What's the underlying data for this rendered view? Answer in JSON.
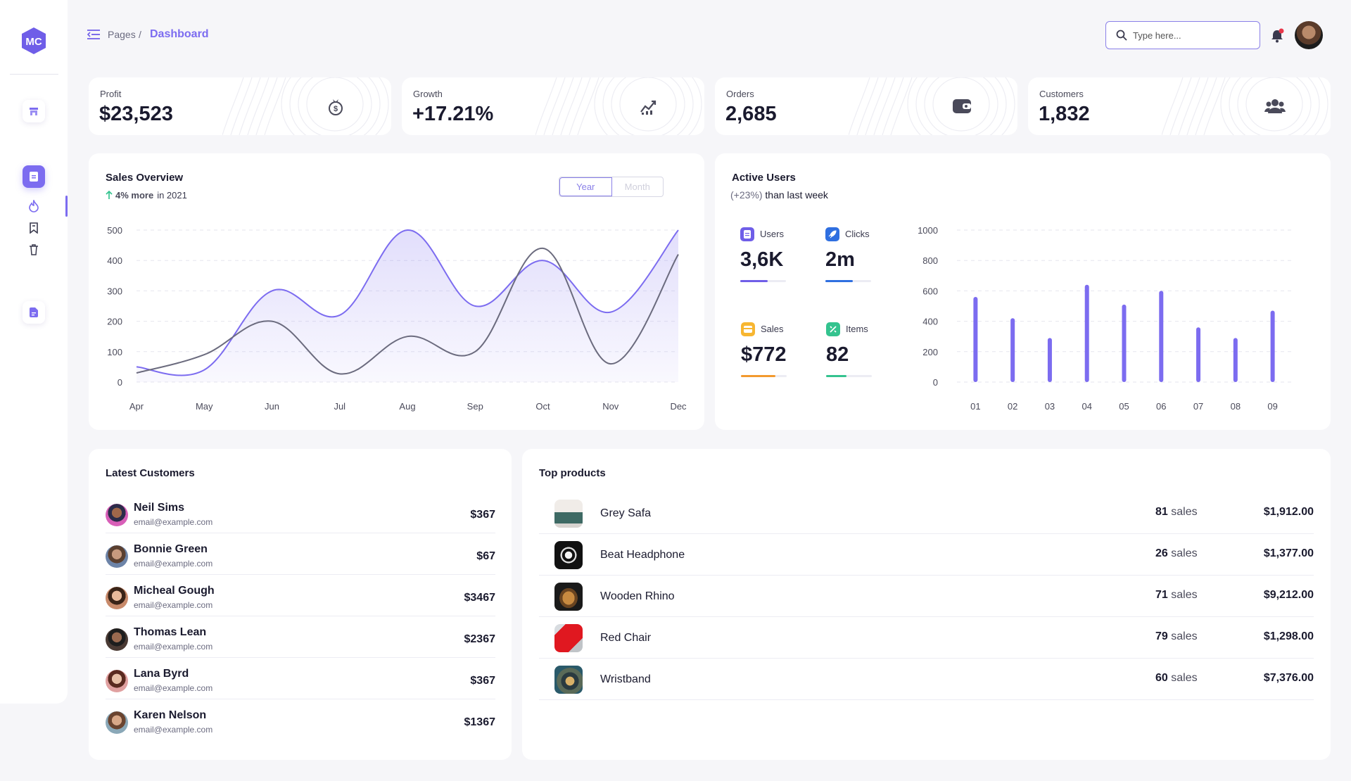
{
  "header": {
    "breadcrumb_parent": "Pages",
    "breadcrumb_sep": "/",
    "breadcrumb_current": "Dashboard",
    "search_placeholder": "Type here..."
  },
  "stats": [
    {
      "label": "Profit",
      "value": "$23,523",
      "icon": "money-bag-icon"
    },
    {
      "label": "Growth",
      "value": "+17.21%",
      "icon": "trend-chart-icon"
    },
    {
      "label": "Orders",
      "value": "2,685",
      "icon": "wallet-icon"
    },
    {
      "label": "Customers",
      "value": "1,832",
      "icon": "users-icon"
    }
  ],
  "sales_overview": {
    "title": "Sales Overview",
    "delta": "4% more",
    "delta_suffix": "in 2021",
    "toggle": [
      "Year",
      "Month"
    ],
    "toggle_selected": "Year"
  },
  "active_users": {
    "title": "Active Users",
    "delta": "(+23%)",
    "delta_suffix": "than last week",
    "metrics": [
      {
        "label": "Users",
        "value": "3,6K",
        "color": "#6f5ee8",
        "progress": 0.6
      },
      {
        "label": "Clicks",
        "value": "2m",
        "color": "#2f6fe0",
        "progress": 0.6
      },
      {
        "label": "Sales",
        "value": "$772",
        "color": "#f29a2e",
        "progress": 0.75
      },
      {
        "label": "Items",
        "value": "82",
        "color": "#34c38f",
        "progress": 0.45
      }
    ]
  },
  "latest_customers": {
    "title": "Latest Customers",
    "rows": [
      {
        "name": "Neil Sims",
        "email": "email@example.com",
        "amount": "$367"
      },
      {
        "name": "Bonnie Green",
        "email": "email@example.com",
        "amount": "$67"
      },
      {
        "name": "Micheal Gough",
        "email": "email@example.com",
        "amount": "$3467"
      },
      {
        "name": "Thomas Lean",
        "email": "email@example.com",
        "amount": "$2367"
      },
      {
        "name": "Lana Byrd",
        "email": "email@example.com",
        "amount": "$367"
      },
      {
        "name": "Karen Nelson",
        "email": "email@example.com",
        "amount": "$1367"
      }
    ]
  },
  "top_products": {
    "title": "Top products",
    "sales_word": "sales",
    "rows": [
      {
        "name": "Grey Safa",
        "sales": "81",
        "price": "$1,912.00"
      },
      {
        "name": "Beat Headphone",
        "sales": "26",
        "price": "$1,377.00"
      },
      {
        "name": "Wooden Rhino",
        "sales": "71",
        "price": "$9,212.00"
      },
      {
        "name": "Red Chair",
        "sales": "79",
        "price": "$1,298.00"
      },
      {
        "name": "Wristband",
        "sales": "60",
        "price": "$7,376.00"
      }
    ]
  },
  "chart_data": [
    {
      "type": "area",
      "x": [
        "Apr",
        "May",
        "Jun",
        "Jul",
        "Aug",
        "Sep",
        "Oct",
        "Nov",
        "Dec"
      ],
      "ylim": [
        0,
        500
      ],
      "yticks": [
        0,
        100,
        200,
        300,
        400,
        500
      ],
      "grid": true,
      "series": [
        {
          "values": [
            50,
            40,
            300,
            220,
            500,
            250,
            400,
            230,
            500
          ],
          "color": "#7c6cf0",
          "fill": true
        },
        {
          "values": [
            30,
            90,
            200,
            27,
            150,
            100,
            440,
            60,
            420
          ],
          "color": "#6b6b7e",
          "fill": false
        }
      ]
    },
    {
      "type": "bar",
      "categories": [
        "01",
        "02",
        "03",
        "04",
        "05",
        "06",
        "07",
        "08",
        "09"
      ],
      "values": [
        560,
        420,
        290,
        640,
        510,
        600,
        360,
        290,
        470
      ],
      "ylim": [
        0,
        1000
      ],
      "yticks": [
        0,
        200,
        400,
        600,
        800,
        1000
      ],
      "grid": true,
      "color": "#7c6cf0"
    }
  ]
}
